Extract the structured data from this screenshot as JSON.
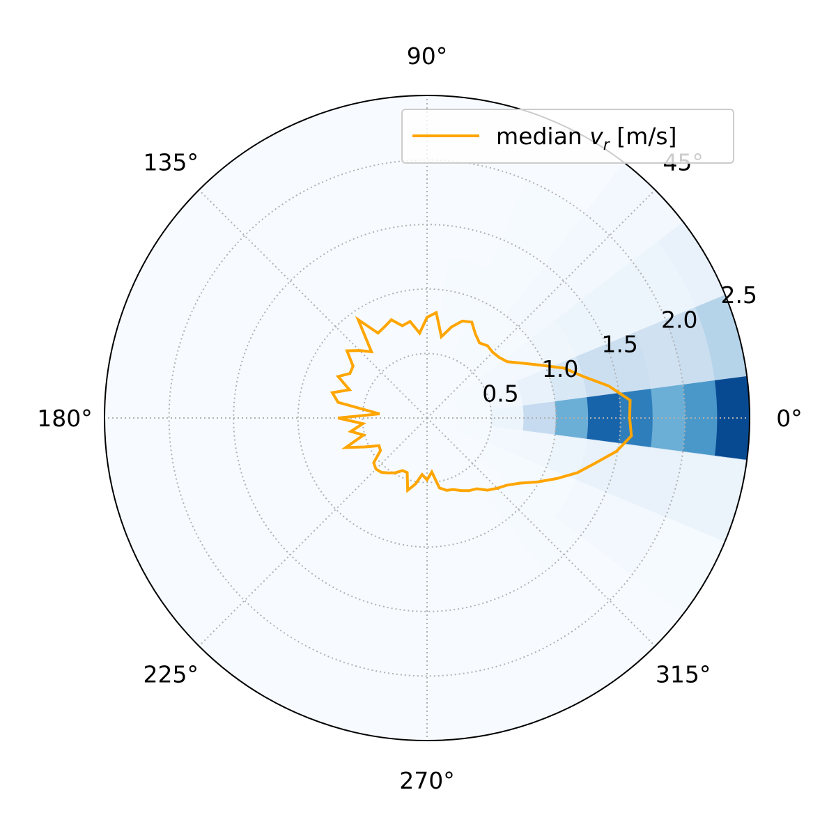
{
  "chart_data": {
    "type": "polar",
    "title": "",
    "theta_unit": "deg",
    "theta_tick_labels": [
      "0°",
      "45°",
      "90°",
      "135°",
      "180°",
      "225°",
      "270°",
      "315°"
    ],
    "r_tick_labels": [
      "0.5",
      "1.0",
      "1.5",
      "2.0",
      "2.5"
    ],
    "rlim": [
      0,
      2.5
    ],
    "rgrid": [
      0.5,
      1.0,
      1.5,
      2.0
    ],
    "grid": true,
    "legend_position": "upper-right",
    "colors": {
      "line": "#ffa500",
      "grid": "#b0b0b0",
      "background_cmap": [
        "#f7fbff",
        "#deebf7",
        "#c6dbef",
        "#9ecae1",
        "#6baed6",
        "#4292c6",
        "#2171b5",
        "#08519c",
        "#08306b"
      ]
    },
    "series": [
      {
        "name": "median v_r [m/s]",
        "legend_label": "median ",
        "legend_var": "v",
        "legend_sub": "r",
        "legend_unit": " [m/s]",
        "theta": [
          0,
          5,
          10,
          15,
          20,
          25,
          30,
          35,
          40,
          45,
          50,
          55,
          60,
          65,
          70,
          75,
          80,
          85,
          90,
          95,
          100,
          105,
          110,
          115,
          120,
          125,
          130,
          135,
          140,
          145,
          150,
          155,
          160,
          165,
          170,
          175,
          180,
          185,
          190,
          195,
          200,
          205,
          210,
          215,
          220,
          225,
          230,
          235,
          240,
          245,
          250,
          255,
          260,
          265,
          270,
          275,
          280,
          285,
          290,
          295,
          300,
          305,
          310,
          315,
          320,
          325,
          330,
          335,
          340,
          345,
          350,
          355,
          360
        ],
        "r": [
          1.57,
          1.58,
          1.43,
          1.25,
          1.13,
          0.97,
          0.85,
          0.76,
          0.73,
          0.72,
          0.73,
          0.71,
          0.75,
          0.82,
          0.8,
          0.73,
          0.64,
          0.82,
          0.78,
          0.66,
          0.76,
          0.74,
          0.81,
          0.78,
          0.76,
          0.93,
          0.67,
          0.74,
          0.81,
          0.7,
          0.69,
          0.76,
          0.64,
          0.76,
          0.7,
          0.37,
          0.69,
          0.5,
          0.6,
          0.51,
          0.67,
          0.53,
          0.43,
          0.44,
          0.54,
          0.56,
          0.55,
          0.52,
          0.49,
          0.45,
          0.45,
          0.58,
          0.52,
          0.44,
          0.48,
          0.42,
          0.55,
          0.58,
          0.59,
          0.62,
          0.65,
          0.67,
          0.73,
          0.77,
          0.81,
          0.88,
          0.99,
          1.11,
          1.24,
          1.35,
          1.49,
          1.59,
          1.57
        ]
      }
    ],
    "histogram": {
      "theta_bins": [
        -7.5,
        7.5,
        22.5,
        37.5,
        52.5,
        67.5,
        82.5,
        97.5,
        112.5,
        127.5,
        142.5,
        157.5,
        172.5,
        187.5,
        202.5,
        217.5,
        232.5,
        247.5,
        262.5,
        277.5,
        292.5,
        307.5,
        322.5,
        337.5,
        352.5
      ],
      "r_bins": [
        0,
        0.25,
        0.5,
        0.75,
        1.0,
        1.25,
        1.5,
        1.75,
        2.0,
        2.25,
        2.5
      ],
      "values": [
        [
          0.0,
          0.01,
          0.05,
          0.25,
          0.5,
          0.8,
          0.7,
          0.5,
          0.6,
          0.9
        ],
        [
          0.0,
          0.01,
          0.03,
          0.07,
          0.15,
          0.22,
          0.22,
          0.2,
          0.23,
          0.3
        ],
        [
          0.0,
          0.01,
          0.02,
          0.02,
          0.04,
          0.05,
          0.05,
          0.05,
          0.05,
          0.07
        ],
        [
          0.0,
          0.0,
          0.01,
          0.01,
          0.02,
          0.02,
          0.02,
          0.02,
          0.02,
          0.02
        ],
        [
          0.0,
          0.0,
          0.01,
          0.01,
          0.01,
          0.01,
          0.01,
          0.01,
          0.0,
          0.0
        ],
        [
          0.0,
          0.0,
          0.0,
          0.01,
          0.01,
          0.0,
          0.0,
          0.0,
          0.0,
          0.0
        ],
        [
          0.0,
          0.0,
          0.0,
          0.0,
          0.0,
          0.0,
          0.0,
          0.0,
          0.0,
          0.0
        ],
        [
          0.0,
          0.0,
          0.0,
          0.0,
          0.0,
          0.0,
          0.0,
          0.0,
          0.0,
          0.0
        ],
        [
          0.0,
          0.0,
          0.0,
          0.0,
          0.0,
          0.0,
          0.0,
          0.0,
          0.0,
          0.0
        ],
        [
          0.0,
          0.0,
          0.0,
          0.0,
          0.0,
          0.0,
          0.0,
          0.0,
          0.0,
          0.0
        ],
        [
          0.0,
          0.0,
          0.0,
          0.0,
          0.0,
          0.0,
          0.0,
          0.0,
          0.0,
          0.0
        ],
        [
          0.0,
          0.0,
          0.0,
          0.0,
          0.0,
          0.0,
          0.0,
          0.0,
          0.0,
          0.0
        ],
        [
          0.0,
          0.0,
          0.0,
          0.0,
          0.0,
          0.0,
          0.0,
          0.0,
          0.0,
          0.0
        ],
        [
          0.0,
          0.0,
          0.0,
          0.0,
          0.0,
          0.0,
          0.0,
          0.0,
          0.0,
          0.0
        ],
        [
          0.0,
          0.0,
          0.0,
          0.0,
          0.0,
          0.0,
          0.0,
          0.0,
          0.0,
          0.0
        ],
        [
          0.0,
          0.0,
          0.0,
          0.0,
          0.0,
          0.0,
          0.0,
          0.0,
          0.0,
          0.0
        ],
        [
          0.0,
          0.0,
          0.0,
          0.0,
          0.0,
          0.0,
          0.0,
          0.0,
          0.0,
          0.0
        ],
        [
          0.0,
          0.0,
          0.0,
          0.0,
          0.0,
          0.0,
          0.0,
          0.0,
          0.0,
          0.0
        ],
        [
          0.0,
          0.0,
          0.0,
          0.0,
          0.0,
          0.0,
          0.0,
          0.0,
          0.0,
          0.0
        ],
        [
          0.0,
          0.0,
          0.0,
          0.0,
          0.0,
          0.0,
          0.0,
          0.0,
          0.0,
          0.0
        ],
        [
          0.0,
          0.0,
          0.0,
          0.0,
          0.0,
          0.0,
          0.0,
          0.0,
          0.0,
          0.0
        ],
        [
          0.0,
          0.0,
          0.0,
          0.01,
          0.01,
          0.01,
          0.0,
          0.0,
          0.0,
          0.0
        ],
        [
          0.0,
          0.0,
          0.01,
          0.01,
          0.01,
          0.02,
          0.02,
          0.02,
          0.01,
          0.01
        ],
        [
          0.0,
          0.01,
          0.02,
          0.03,
          0.05,
          0.07,
          0.07,
          0.07,
          0.06,
          0.06
        ],
        [
          0.0,
          0.01,
          0.03,
          0.08,
          0.16,
          0.24,
          0.24,
          0.22,
          0.25,
          0.32
        ]
      ]
    }
  }
}
